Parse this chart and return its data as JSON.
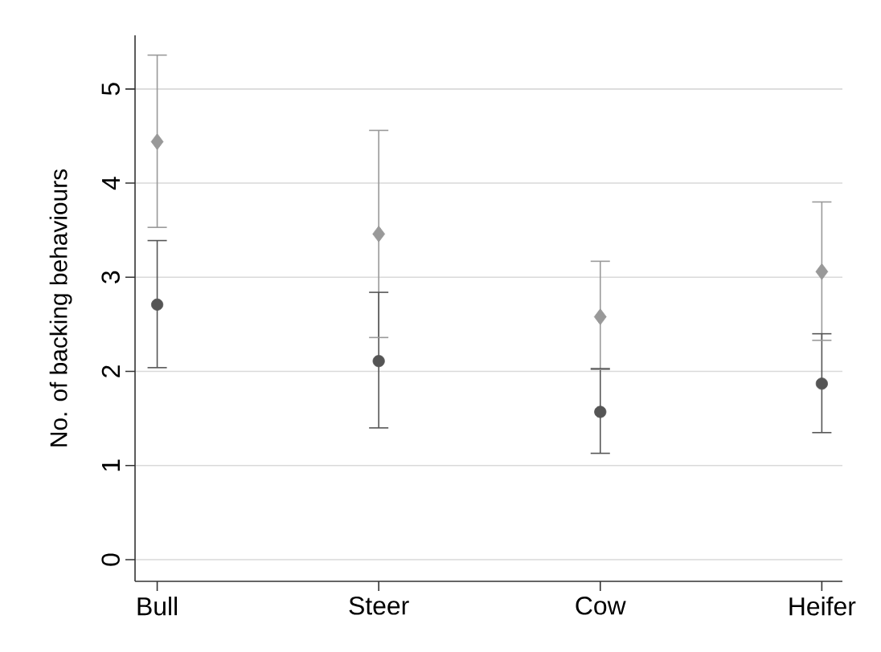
{
  "chart_data": {
    "type": "scatter",
    "ylabel": "No. of backing behaviours",
    "categories": [
      "Bull",
      "Steer",
      "Cow",
      "Heifer"
    ],
    "series": [
      {
        "color": "#999999",
        "marker": "diamond",
        "values": [
          4.44,
          3.46,
          2.58,
          3.06
        ],
        "errors": [
          [
            3.53,
            5.36
          ],
          [
            2.36,
            4.56
          ],
          [
            2.02,
            3.17
          ],
          [
            2.33,
            3.8
          ]
        ]
      },
      {
        "color": "#555555",
        "marker": "circle",
        "values": [
          2.71,
          2.11,
          1.57,
          1.87
        ],
        "errors": [
          [
            2.04,
            3.39
          ],
          [
            1.4,
            2.84
          ],
          [
            1.13,
            2.03
          ],
          [
            1.35,
            2.4
          ]
        ]
      }
    ],
    "ylim": [
      -0.23,
      5.57
    ],
    "yticks": [
      0,
      1,
      2,
      3,
      4,
      5
    ],
    "grid": "y"
  }
}
